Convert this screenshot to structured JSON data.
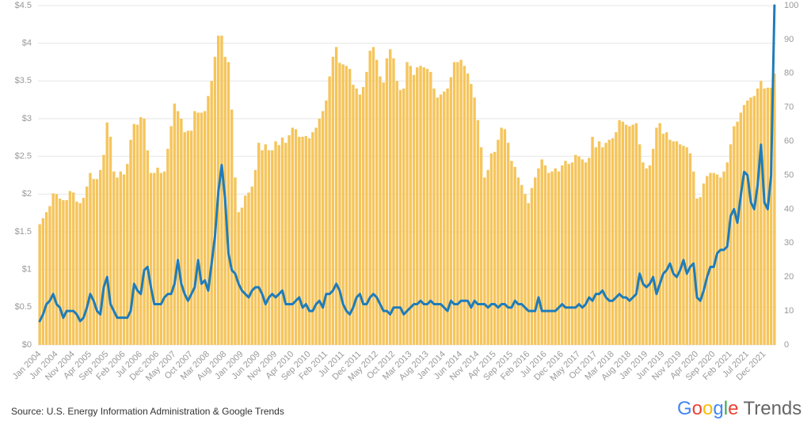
{
  "chart_data": {
    "type": "bar_line",
    "categories": [
      "Jan 2004",
      null,
      null,
      null,
      null,
      "Jun 2004",
      null,
      null,
      null,
      null,
      "Nov 2004",
      null,
      null,
      null,
      null,
      "Apr 2005",
      null,
      null,
      null,
      null,
      "Sep 2005",
      null,
      null,
      null,
      null,
      "Feb 2006",
      null,
      null,
      null,
      null,
      "Jul 2006",
      null,
      null,
      null,
      null,
      "Dec 2006",
      null,
      null,
      null,
      null,
      "May 2007",
      null,
      null,
      null,
      null,
      "Oct 2007",
      null,
      null,
      null,
      null,
      "Mar 2008",
      null,
      null,
      null,
      null,
      "Aug 2008",
      null,
      null,
      null,
      null,
      "Jan 2009",
      null,
      null,
      null,
      null,
      "Jun 2009",
      null,
      null,
      null,
      null,
      "Nov 2009",
      null,
      null,
      null,
      null,
      "Apr 2010",
      null,
      null,
      null,
      null,
      "Sep 2010",
      null,
      null,
      null,
      null,
      "Feb 2011",
      null,
      null,
      null,
      null,
      "Jul 2011",
      null,
      null,
      null,
      null,
      "Dec 2011",
      null,
      null,
      null,
      null,
      "May 2012",
      null,
      null,
      null,
      null,
      "Oct 2012",
      null,
      null,
      null,
      null,
      "Mar 2013",
      null,
      null,
      null,
      null,
      "Aug 2013",
      null,
      null,
      null,
      null,
      "Jan 2014",
      null,
      null,
      null,
      null,
      "Jun 2014",
      null,
      null,
      null,
      null,
      "Nov 2014",
      null,
      null,
      null,
      null,
      "Apr 2015",
      null,
      null,
      null,
      null,
      "Sep 2015",
      null,
      null,
      null,
      null,
      "Feb 2016",
      null,
      null,
      null,
      null,
      "Jul 2016",
      null,
      null,
      null,
      null,
      "Dec 2016",
      null,
      null,
      null,
      null,
      "May 2017",
      null,
      null,
      null,
      null,
      "Oct 2017",
      null,
      null,
      null,
      null,
      "Mar 2018",
      null,
      null,
      null,
      null,
      "Aug 2018",
      null,
      null,
      null,
      null,
      "Jan 2019",
      null,
      null,
      null,
      null,
      "Jun 2019",
      null,
      null,
      null,
      null,
      "Nov 2019",
      null,
      null,
      null,
      null,
      "Apr 2020",
      null,
      null,
      null,
      null,
      "Sep 2020",
      null,
      null,
      null,
      null,
      "Feb 2021",
      null,
      null,
      null,
      null,
      "Jul 2021",
      null,
      null,
      null,
      null,
      "Dec 2021",
      null,
      null,
      null
    ],
    "series": [
      {
        "type": "bar",
        "color": "#f5c55c",
        "values": [
          1.6,
          1.68,
          1.76,
          1.84,
          2.01,
          2.0,
          1.94,
          1.92,
          1.92,
          2.04,
          2.02,
          1.9,
          1.88,
          1.95,
          2.1,
          2.28,
          2.2,
          2.2,
          2.32,
          2.52,
          2.95,
          2.76,
          2.3,
          2.22,
          2.3,
          2.26,
          2.4,
          2.72,
          2.93,
          2.92,
          3.02,
          3.0,
          2.58,
          2.28,
          2.28,
          2.35,
          2.28,
          2.3,
          2.6,
          2.9,
          3.2,
          3.1,
          3.0,
          2.82,
          2.84,
          2.84,
          3.1,
          3.08,
          3.08,
          3.1,
          3.3,
          3.5,
          3.82,
          4.1,
          4.1,
          3.82,
          3.75,
          3.12,
          2.22,
          1.76,
          1.82,
          1.98,
          2.02,
          2.1,
          2.32,
          2.68,
          2.58,
          2.66,
          2.58,
          2.58,
          2.7,
          2.65,
          2.75,
          2.68,
          2.78,
          2.88,
          2.86,
          2.76,
          2.76,
          2.77,
          2.74,
          2.82,
          2.88,
          3.0,
          3.1,
          3.24,
          3.56,
          3.82,
          3.95,
          3.74,
          3.72,
          3.7,
          3.66,
          3.45,
          3.4,
          3.32,
          3.42,
          3.62,
          3.9,
          3.95,
          3.78,
          3.56,
          3.48,
          3.8,
          3.92,
          3.8,
          3.5,
          3.38,
          3.4,
          3.75,
          3.7,
          3.58,
          3.68,
          3.7,
          3.68,
          3.66,
          3.62,
          3.4,
          3.28,
          3.32,
          3.36,
          3.4,
          3.55,
          3.75,
          3.75,
          3.78,
          3.7,
          3.6,
          3.46,
          3.28,
          2.98,
          2.62,
          2.22,
          2.32,
          2.54,
          2.56,
          2.72,
          2.88,
          2.86,
          2.68,
          2.44,
          2.36,
          2.22,
          2.12,
          2.0,
          1.88,
          2.08,
          2.22,
          2.34,
          2.46,
          2.38,
          2.28,
          2.3,
          2.34,
          2.3,
          2.38,
          2.44,
          2.4,
          2.42,
          2.52,
          2.5,
          2.46,
          2.42,
          2.48,
          2.76,
          2.62,
          2.7,
          2.62,
          2.68,
          2.72,
          2.74,
          2.82,
          2.98,
          2.96,
          2.92,
          2.9,
          2.92,
          2.94,
          2.66,
          2.42,
          2.34,
          2.38,
          2.6,
          2.88,
          2.94,
          2.8,
          2.82,
          2.72,
          2.7,
          2.7,
          2.66,
          2.64,
          2.62,
          2.54,
          2.3,
          1.94,
          1.96,
          2.14,
          2.24,
          2.28,
          2.28,
          2.26,
          2.22,
          2.3,
          2.42,
          2.66,
          2.9,
          2.96,
          3.08,
          3.18,
          3.24,
          3.28,
          3.3,
          3.4,
          3.5,
          3.4,
          3.41,
          3.41,
          3.6
        ]
      },
      {
        "type": "line",
        "axis": "y2",
        "color": "#1f7cba",
        "values": [
          7,
          9,
          12,
          13,
          15,
          12,
          11,
          8,
          10,
          10,
          10,
          9,
          7,
          8,
          11,
          15,
          13,
          10,
          9,
          17,
          20,
          12,
          10,
          8,
          8,
          8,
          8,
          10,
          18,
          16,
          15,
          22,
          23,
          17,
          12,
          12,
          12,
          14,
          15,
          15,
          18,
          25,
          18,
          15,
          13,
          15,
          17,
          25,
          18,
          19,
          16,
          24,
          32,
          45,
          53,
          43,
          27,
          22,
          21,
          18,
          16,
          15,
          14,
          16,
          17,
          17,
          15,
          12,
          14,
          15,
          14,
          15,
          16,
          12,
          12,
          12,
          13,
          14,
          11,
          12,
          10,
          10,
          12,
          13,
          11,
          15,
          15,
          16,
          18,
          16,
          12,
          10,
          9,
          11,
          14,
          15,
          12,
          12,
          14,
          15,
          14,
          12,
          10,
          10,
          9,
          11,
          11,
          11,
          9,
          10,
          11,
          12,
          12,
          13,
          12,
          12,
          13,
          12,
          12,
          12,
          11,
          10,
          13,
          12,
          12,
          13,
          13,
          13,
          11,
          13,
          12,
          12,
          12,
          11,
          12,
          12,
          11,
          12,
          12,
          11,
          11,
          13,
          12,
          12,
          11,
          10,
          10,
          10,
          14,
          10,
          10,
          10,
          10,
          10,
          11,
          12,
          11,
          11,
          11,
          11,
          12,
          11,
          12,
          14,
          13,
          15,
          15,
          16,
          14,
          13,
          13,
          14,
          15,
          14,
          14,
          13,
          14,
          15,
          21,
          18,
          17,
          18,
          20,
          15,
          18,
          21,
          22,
          24,
          21,
          20,
          22,
          25,
          21,
          23,
          24,
          14,
          13,
          16,
          20,
          23,
          23,
          27,
          28,
          28,
          29,
          38,
          40,
          36,
          44,
          51,
          50,
          42,
          40,
          47,
          59,
          42,
          40,
          50,
          100
        ]
      }
    ],
    "ylim": [
      0,
      4.5
    ],
    "yticks": [
      {
        "value": 0,
        "label": "$0"
      },
      {
        "value": 0.5,
        "label": "$0.5"
      },
      {
        "value": 1,
        "label": "$1"
      },
      {
        "value": 1.5,
        "label": "$1.5"
      },
      {
        "value": 2,
        "label": "$2"
      },
      {
        "value": 2.5,
        "label": "$2.5"
      },
      {
        "value": 3,
        "label": "$3"
      },
      {
        "value": 3.5,
        "label": "$3.5"
      },
      {
        "value": 4,
        "label": "$4"
      },
      {
        "value": 4.5,
        "label": "$4.5"
      }
    ],
    "y2lim": [
      0,
      100
    ],
    "y2ticks": [
      0,
      10,
      20,
      30,
      40,
      50,
      60,
      70,
      80,
      90,
      100
    ],
    "grid": true,
    "source": "Source: U.S. Energy Information Administration & Google Trends",
    "logo": {
      "brand": "Google",
      "product": "Trends"
    }
  }
}
